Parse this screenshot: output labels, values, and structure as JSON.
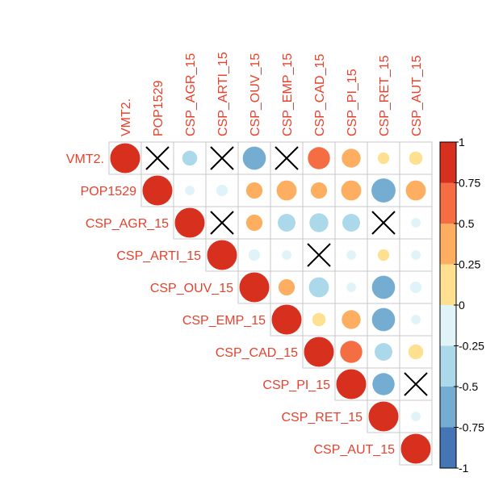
{
  "chart_data": {
    "type": "heatmap",
    "subtype": "correlation-matrix-upper-circles",
    "title": "",
    "variables": [
      "VMT2.",
      "POP1529",
      "CSP_AGR_15",
      "CSP_ARTI_15",
      "CSP_OUV_15",
      "CSP_EMP_15",
      "CSP_CAD_15",
      "CSP_PI_15",
      "CSP_RET_15",
      "CSP_AUT_15"
    ],
    "matrix": [
      [
        1,
        0,
        -0.25,
        0,
        -0.6,
        0,
        0.55,
        0.4,
        0.15,
        0.2
      ],
      [
        null,
        1,
        -0.1,
        -0.15,
        0.3,
        0.45,
        0.3,
        0.45,
        -0.65,
        0.45
      ],
      [
        null,
        null,
        1,
        0,
        0.3,
        -0.35,
        -0.4,
        -0.35,
        0,
        -0.1
      ],
      [
        null,
        null,
        null,
        1,
        -0.15,
        -0.1,
        0,
        -0.1,
        0.15,
        -0.1
      ],
      [
        null,
        null,
        null,
        null,
        1,
        0.3,
        -0.45,
        -0.1,
        -0.6,
        -0.15
      ],
      [
        null,
        null,
        null,
        null,
        null,
        1,
        0.2,
        0.4,
        -0.6,
        -0.1
      ],
      [
        null,
        null,
        null,
        null,
        null,
        null,
        1,
        0.55,
        -0.35,
        0.25
      ],
      [
        null,
        null,
        null,
        null,
        null,
        null,
        null,
        1,
        -0.55,
        0
      ],
      [
        null,
        null,
        null,
        null,
        null,
        null,
        null,
        null,
        1,
        -0.1
      ],
      [
        null,
        null,
        null,
        null,
        null,
        null,
        null,
        null,
        null,
        1
      ]
    ],
    "insignificant_marker": "cross",
    "insignificant_cells": [
      [
        0,
        1
      ],
      [
        0,
        3
      ],
      [
        0,
        5
      ],
      [
        2,
        3
      ],
      [
        2,
        8
      ],
      [
        3,
        6
      ],
      [
        7,
        9
      ]
    ],
    "colorbar": {
      "range": [
        -1,
        1
      ],
      "tick_labels": [
        "1",
        "0.75",
        "0.5",
        "0.25",
        "0",
        "-0.25",
        "-0.5",
        "-0.75",
        "-1"
      ],
      "colors": [
        "#D7301F",
        "#F46D43",
        "#FDAE61",
        "#FEE090",
        "#E0F3F8",
        "#ABD9E9",
        "#74ADD1",
        "#4575B4"
      ]
    },
    "label_color": "#E8412C",
    "grid": true
  }
}
